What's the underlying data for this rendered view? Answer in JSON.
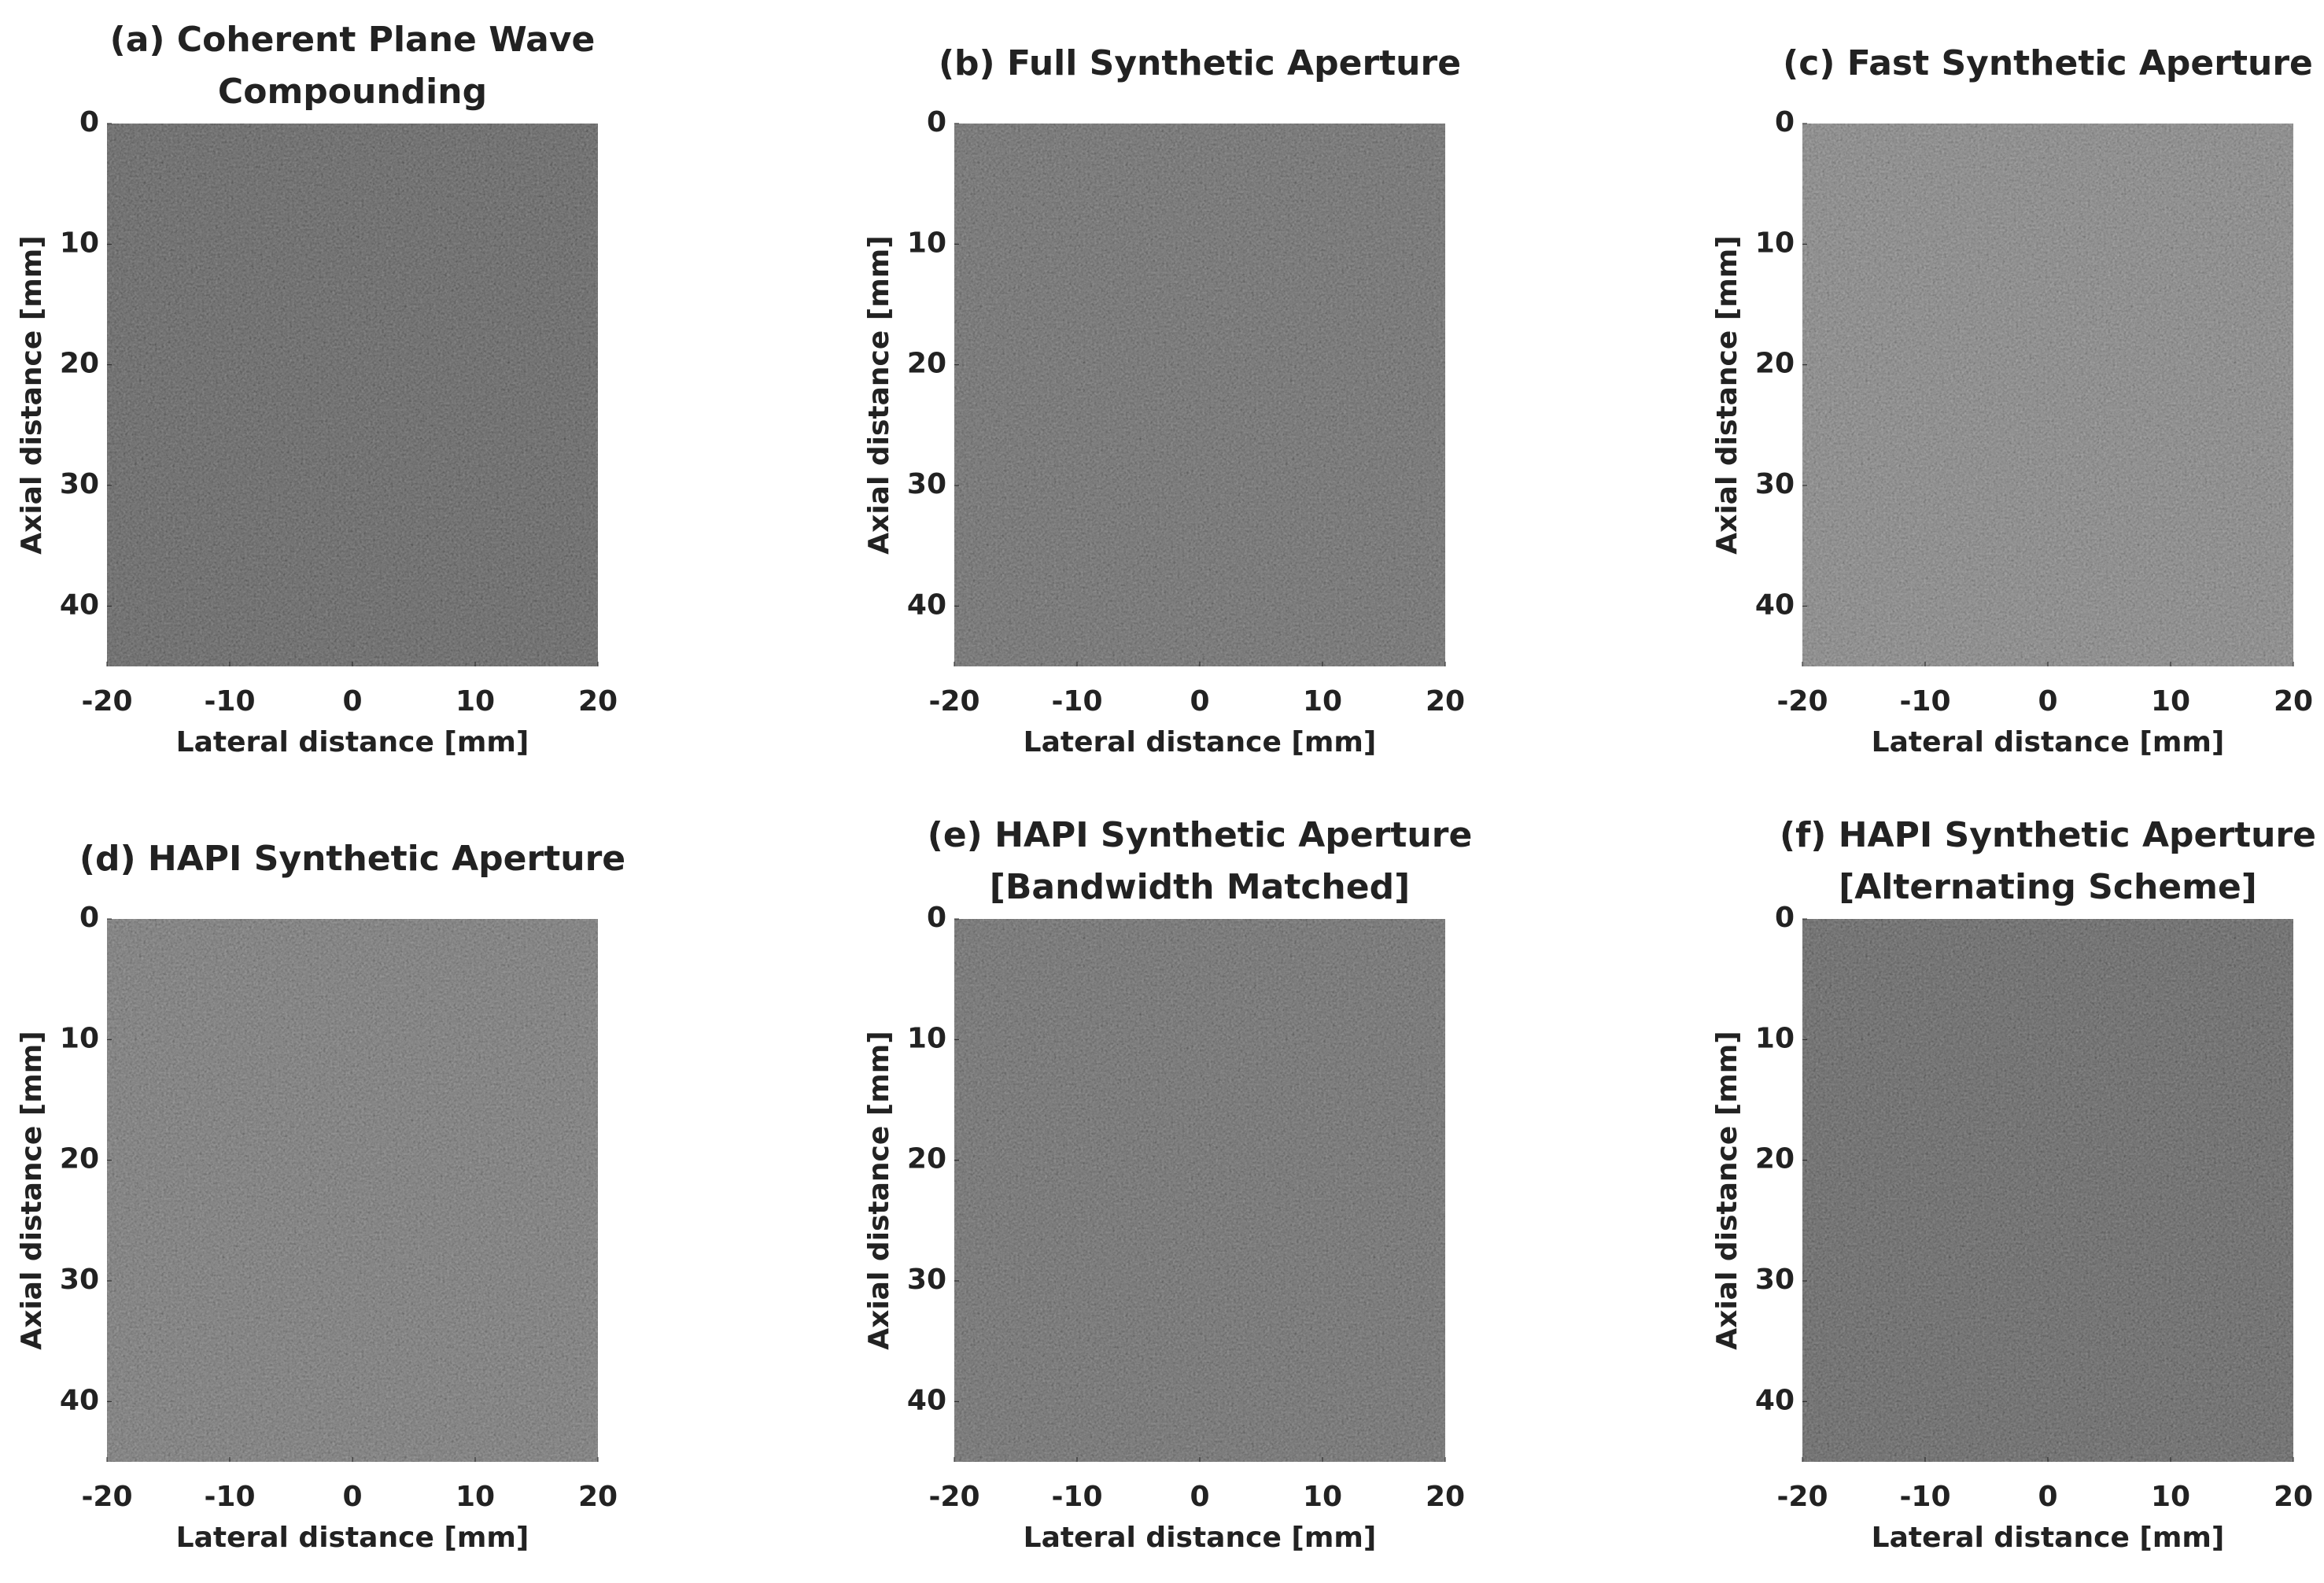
{
  "chart_data": [
    {
      "type": "image",
      "title": [
        "(a) Coherent Plane Wave",
        "Compounding"
      ],
      "xlabel": "Lateral distance [mm]",
      "ylabel": "Axial distance [mm]",
      "xlim": [
        -20,
        20
      ],
      "ylim": [
        45,
        0
      ],
      "xticks": [
        -20,
        -10,
        0,
        10,
        20
      ],
      "yticks": [
        0,
        10,
        20,
        30,
        40
      ],
      "color": "#1c1c1c"
    },
    {
      "type": "image",
      "title": [
        "(b) Full Synthetic Aperture"
      ],
      "xlabel": "Lateral distance [mm]",
      "ylabel": "Axial distance [mm]",
      "xlim": [
        -20,
        20
      ],
      "ylim": [
        45,
        0
      ],
      "xticks": [
        -20,
        -10,
        0,
        10,
        20
      ],
      "yticks": [
        0,
        10,
        20,
        30,
        40
      ],
      "color": "#2f2f2f"
    },
    {
      "type": "image",
      "title": [
        "(c) Fast Synthetic Aperture"
      ],
      "xlabel": "Lateral distance [mm]",
      "ylabel": "Axial distance [mm]",
      "xlim": [
        -20,
        20
      ],
      "ylim": [
        45,
        0
      ],
      "xticks": [
        -20,
        -10,
        0,
        10,
        20
      ],
      "yticks": [
        0,
        10,
        20,
        30,
        40
      ],
      "color": "#5c5c5c"
    },
    {
      "type": "image",
      "title": [
        "(d) HAPI Synthetic Aperture"
      ],
      "xlabel": "Lateral distance [mm]",
      "ylabel": "Axial distance [mm]",
      "xlim": [
        -20,
        20
      ],
      "ylim": [
        45,
        0
      ],
      "xticks": [
        -20,
        -10,
        0,
        10,
        20
      ],
      "yticks": [
        0,
        10,
        20,
        30,
        40
      ],
      "color": "#444444"
    },
    {
      "type": "image",
      "title": [
        "(e) HAPI Synthetic Aperture",
        "[Bandwidth Matched]"
      ],
      "xlabel": "Lateral distance [mm]",
      "ylabel": "Axial distance [mm]",
      "xlim": [
        -20,
        20
      ],
      "ylim": [
        45,
        0
      ],
      "xticks": [
        -20,
        -10,
        0,
        10,
        20
      ],
      "yticks": [
        0,
        10,
        20,
        30,
        40
      ],
      "color": "#303030"
    },
    {
      "type": "image",
      "title": [
        "(f) HAPI Synthetic Aperture",
        "[Alternating Scheme]"
      ],
      "xlabel": "Lateral distance [mm]",
      "ylabel": "Axial distance [mm]",
      "xlim": [
        -20,
        20
      ],
      "ylim": [
        45,
        0
      ],
      "xticks": [
        -20,
        -10,
        0,
        10,
        20
      ],
      "yticks": [
        0,
        10,
        20,
        30,
        40
      ],
      "color": "#202020"
    }
  ]
}
